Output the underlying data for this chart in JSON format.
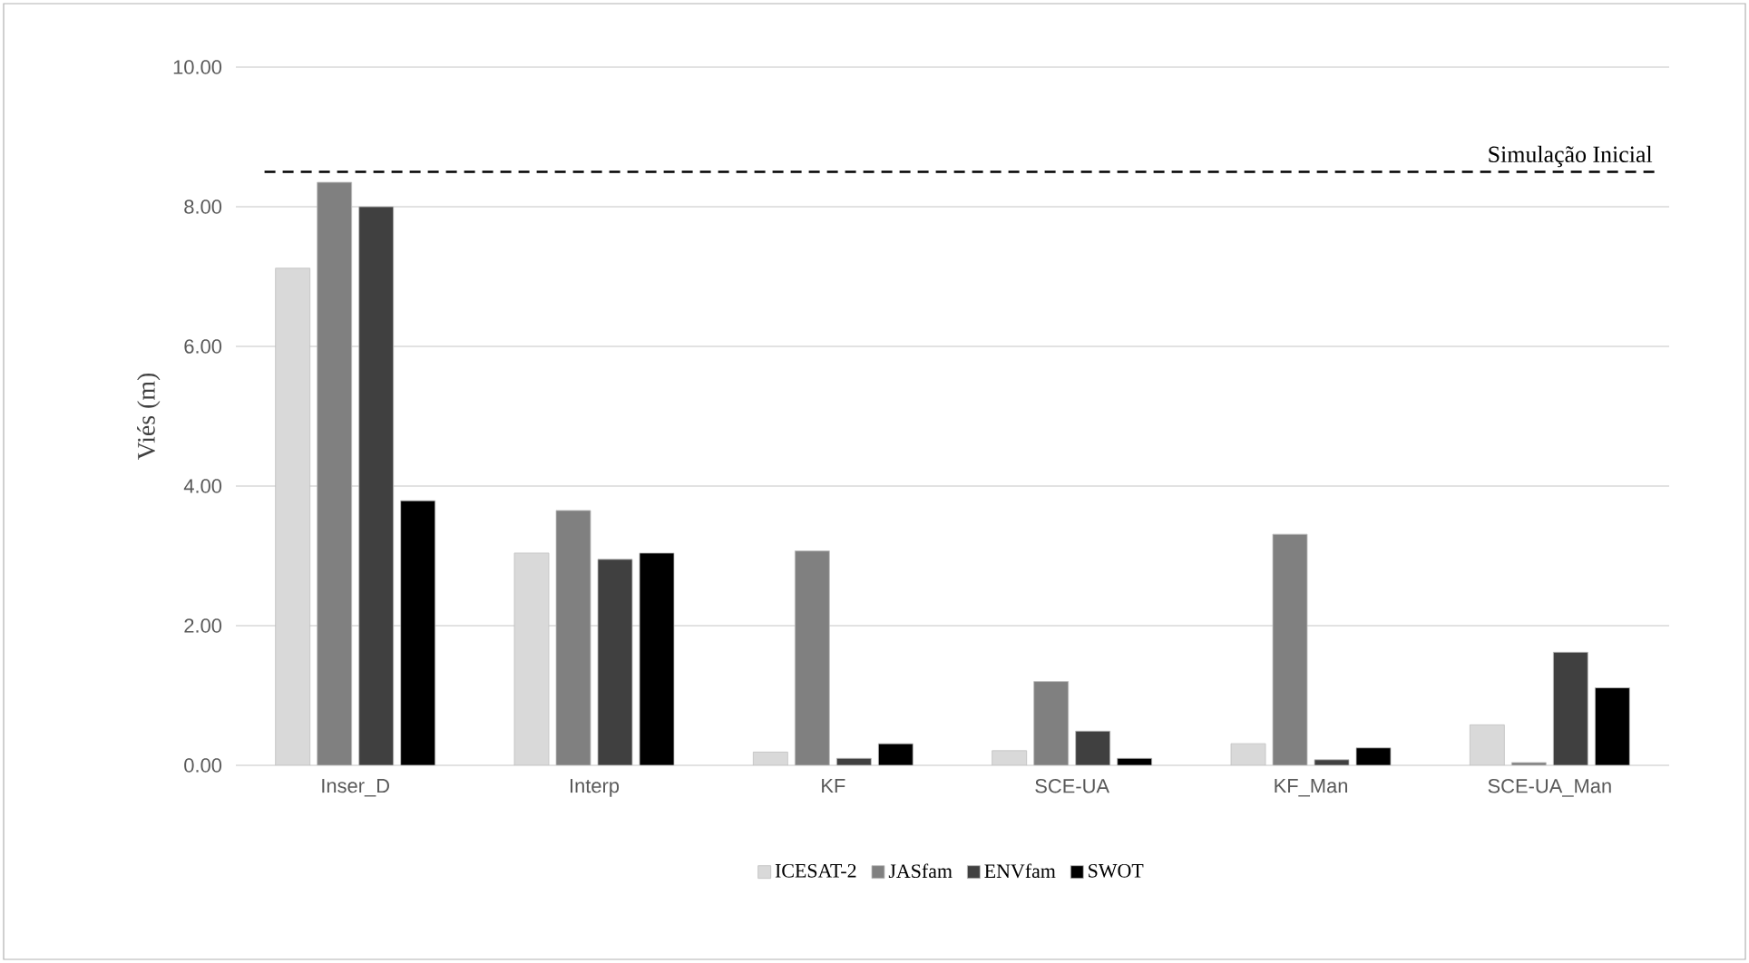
{
  "chart_data": {
    "type": "bar",
    "ylabel": "Viés (m)",
    "categories": [
      "Inser_D",
      "Interp",
      "KF",
      "SCE-UA",
      "KF_Man",
      "SCE-UA_Man"
    ],
    "series": [
      {
        "name": "ICESAT-2",
        "color": "#d9d9d9",
        "values": [
          7.12,
          3.04,
          0.19,
          0.21,
          0.31,
          0.58
        ]
      },
      {
        "name": "JASfam",
        "color": "#808080",
        "values": [
          8.35,
          3.65,
          3.07,
          1.2,
          3.31,
          0.04
        ]
      },
      {
        "name": "ENVfam",
        "color": "#404040",
        "values": [
          8.0,
          2.95,
          0.1,
          0.49,
          0.08,
          1.62
        ]
      },
      {
        "name": "SWOT",
        "color": "#000000",
        "values": [
          3.79,
          3.04,
          0.31,
          0.1,
          0.25,
          1.11
        ]
      }
    ],
    "ylim": [
      0,
      10
    ],
    "yticks": [
      {
        "value": 0,
        "label": "0.00"
      },
      {
        "value": 2,
        "label": "2.00"
      },
      {
        "value": 4,
        "label": "4.00"
      },
      {
        "value": 6,
        "label": "6.00"
      },
      {
        "value": 8,
        "label": "8.00"
      },
      {
        "value": 10,
        "label": "10.00"
      }
    ],
    "grid": "y",
    "legend": "bottom",
    "ref_lines": [
      {
        "axis": "y",
        "value": 8.5,
        "label": "Simulação Inicial",
        "color": "#000000",
        "line_style": "dashed"
      }
    ]
  }
}
